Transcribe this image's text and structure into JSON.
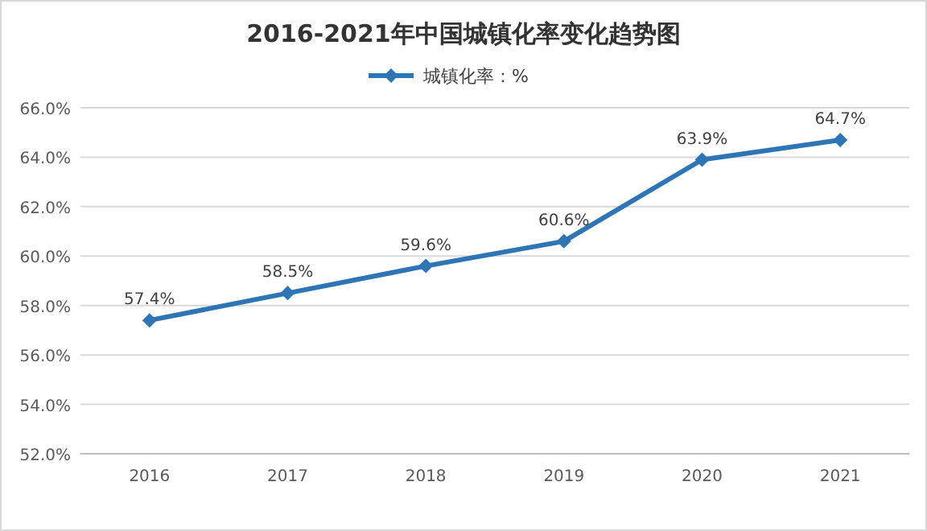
{
  "chart_data": {
    "type": "line",
    "title": "2016-2021年中国城镇化率变化趋势图",
    "categories": [
      "2016",
      "2017",
      "2018",
      "2019",
      "2020",
      "2021"
    ],
    "series": [
      {
        "name": "城镇化率：%",
        "color": "#2e75b6",
        "values": [
          57.4,
          58.5,
          59.6,
          60.6,
          63.9,
          64.7
        ],
        "value_labels": [
          "57.4%",
          "58.5%",
          "59.6%",
          "60.6%",
          "63.9%",
          "64.7%"
        ]
      }
    ],
    "ylim": [
      52,
      66
    ],
    "yticks": [
      {
        "value": 52,
        "label": "52.0%"
      },
      {
        "value": 54,
        "label": "54.0%"
      },
      {
        "value": 56,
        "label": "56.0%"
      },
      {
        "value": 58,
        "label": "58.0%"
      },
      {
        "value": 60,
        "label": "60.0%"
      },
      {
        "value": 62,
        "label": "62.0%"
      },
      {
        "value": 64,
        "label": "64.0%"
      },
      {
        "value": 66,
        "label": "66.0%"
      }
    ],
    "grid": "y",
    "legend": "top",
    "marker": "diamond",
    "line_style": "solid"
  }
}
